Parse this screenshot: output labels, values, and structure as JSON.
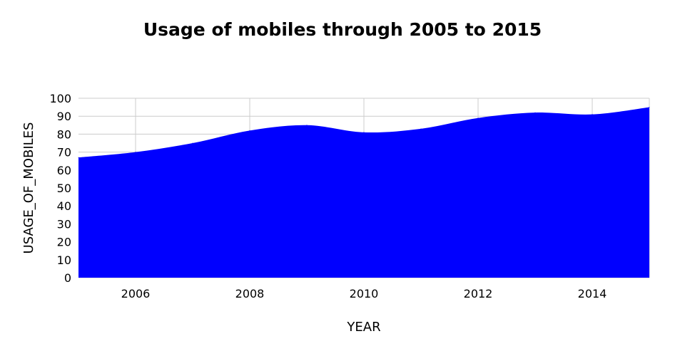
{
  "chart_data": {
    "type": "area",
    "title": "Usage of mobiles through 2005 to 2015",
    "xlabel": "YEAR",
    "ylabel": "USAGE_OF_MOBILES",
    "xlim": [
      2005,
      2015
    ],
    "ylim": [
      0,
      100
    ],
    "x_ticks": [
      2006,
      2008,
      2010,
      2012,
      2014
    ],
    "y_ticks": [
      0,
      10,
      20,
      30,
      40,
      50,
      60,
      70,
      80,
      90,
      100
    ],
    "grid": true,
    "legend": "none",
    "series": [
      {
        "x": [
          2005,
          2006,
          2007,
          2008,
          2009,
          2010,
          2011,
          2012,
          2013,
          2014,
          2015
        ],
        "values": [
          67,
          70,
          75,
          82,
          85,
          81,
          83,
          89,
          92,
          91,
          95
        ],
        "color": "#0000ff"
      }
    ]
  }
}
